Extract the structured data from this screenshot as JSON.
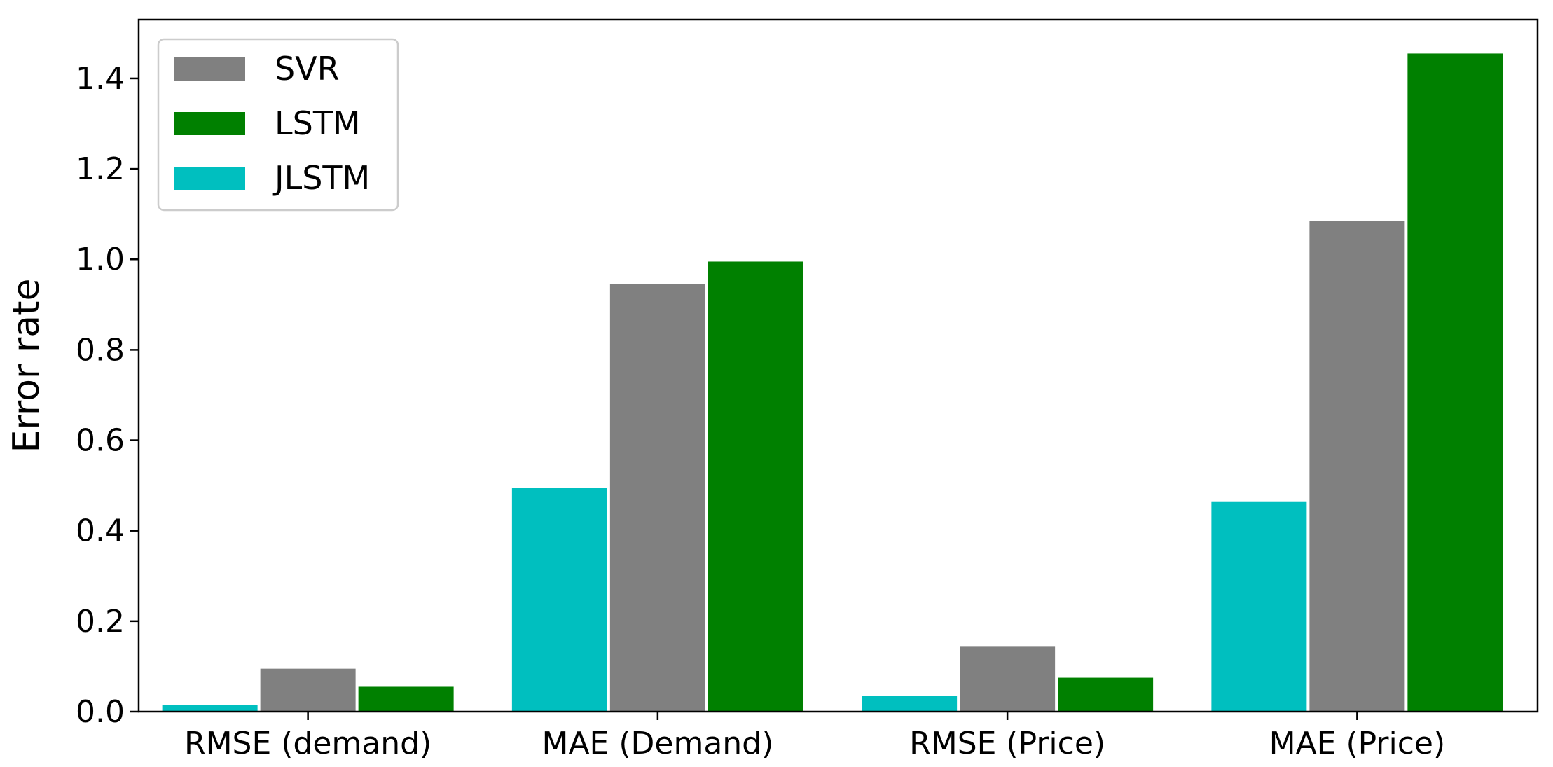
{
  "chart_data": {
    "type": "bar",
    "title": "",
    "xlabel": "",
    "ylabel": "Error rate",
    "ylim": [
      0,
      1.53
    ],
    "yticks": [
      "0.0",
      "0.2",
      "0.4",
      "0.6",
      "0.8",
      "1.0",
      "1.2",
      "1.4"
    ],
    "categories": [
      "RMSE (demand)",
      "MAE (Demand)",
      "RMSE (Price)",
      "MAE (Price)"
    ],
    "series": [
      {
        "name": "JLSTM",
        "color": "#00BFBF",
        "values": [
          0.015,
          0.495,
          0.035,
          0.465
        ]
      },
      {
        "name": "SVR",
        "color": "#808080",
        "values": [
          0.095,
          0.945,
          0.145,
          1.085
        ]
      },
      {
        "name": "LSTM",
        "color": "#008000",
        "values": [
          0.055,
          0.995,
          0.075,
          1.455
        ]
      }
    ],
    "legend": {
      "position": "top-left",
      "order": [
        "SVR",
        "LSTM",
        "JLSTM"
      ]
    },
    "grid": false
  }
}
